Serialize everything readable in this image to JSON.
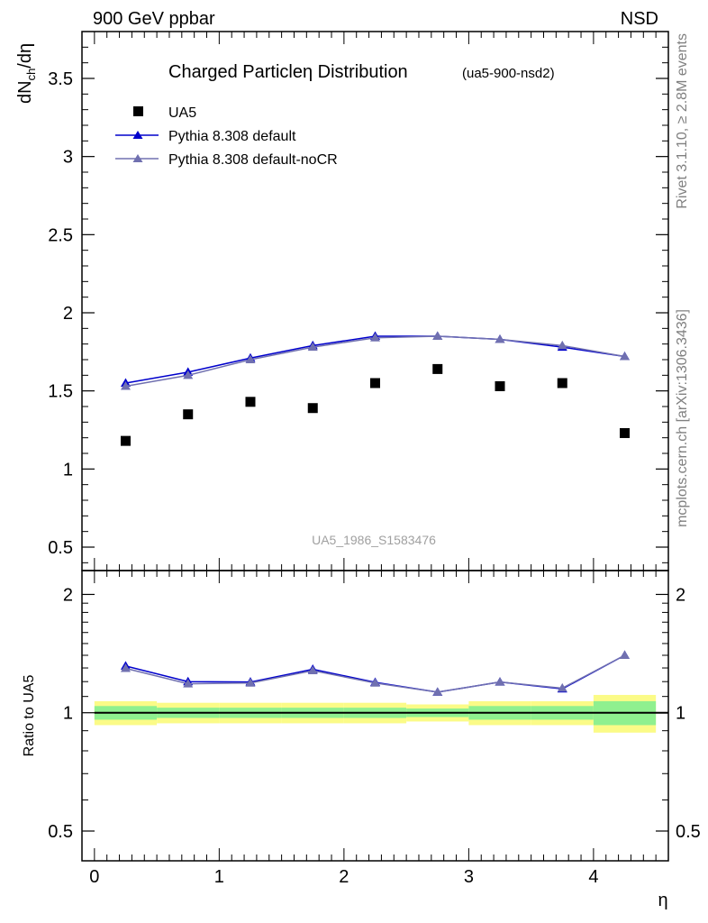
{
  "header": {
    "left": "900 GeV ppbar",
    "right": "NSD"
  },
  "side_labels": {
    "top": "Rivet 3.1.10, ≥ 2.8M events",
    "bottom": "mcplots.cern.ch [arXiv:1306.3436]"
  },
  "chart_data": [
    {
      "type": "scatter",
      "title": "Charged Particleη Distribution",
      "subtitle": "(ua5-900-nsd2)",
      "ylabel": "dNₕ/dη",
      "ylabel_main": "dN",
      "ylabel_sub": "ch",
      "ylabel_tail": "/dη",
      "watermark": "UA5_1986_S1583476",
      "ylim": [
        0.35,
        3.8
      ],
      "xlim": [
        -0.1,
        4.6
      ],
      "y_ticks": [
        0.5,
        1,
        1.5,
        2,
        2.5,
        3,
        3.5
      ],
      "y_tick_labels": [
        "0.5",
        "1",
        "1.5",
        "2",
        "2.5",
        "3",
        "3.5"
      ],
      "legend_position": "top-left",
      "x": [
        0.25,
        0.75,
        1.25,
        1.75,
        2.25,
        2.75,
        3.25,
        3.75,
        4.25
      ],
      "series": [
        {
          "name": "UA5",
          "color": "#000000",
          "marker": "square",
          "values": [
            1.18,
            1.35,
            1.43,
            1.39,
            1.55,
            1.64,
            1.53,
            1.55,
            1.23
          ]
        },
        {
          "name": "Pythia 8.308 default",
          "color": "#0000cc",
          "marker": "triangle",
          "values": [
            1.55,
            1.62,
            1.71,
            1.79,
            1.85,
            1.85,
            1.83,
            1.78,
            1.72
          ]
        },
        {
          "name": "Pythia 8.308 default-noCR",
          "color": "#7070b0",
          "marker": "triangle",
          "values": [
            1.53,
            1.6,
            1.7,
            1.78,
            1.84,
            1.85,
            1.83,
            1.79,
            1.72
          ]
        }
      ]
    },
    {
      "type": "line",
      "ylabel": "Ratio to UA5",
      "xlabel": "η",
      "ylim": [
        0.42,
        2.3
      ],
      "xlim": [
        -0.1,
        4.6
      ],
      "log_y": true,
      "y_ticks": [
        0.5,
        1,
        2
      ],
      "y_tick_labels": [
        "0.5",
        "1",
        "2"
      ],
      "x_ticks": [
        0,
        1,
        2,
        3,
        4
      ],
      "x_tick_labels": [
        "0",
        "1",
        "2",
        "3",
        "4"
      ],
      "bands": {
        "edges": [
          0,
          0.5,
          1,
          1.5,
          2,
          2.5,
          3,
          3.5,
          4,
          4.5
        ],
        "yellow": [
          0.07,
          0.06,
          0.06,
          0.06,
          0.06,
          0.05,
          0.07,
          0.07,
          0.11
        ],
        "green": [
          0.04,
          0.03,
          0.03,
          0.03,
          0.03,
          0.025,
          0.04,
          0.04,
          0.07
        ],
        "yellow_color": "#fbfb87",
        "green_color": "#8ff08f"
      },
      "x": [
        0.25,
        0.75,
        1.25,
        1.75,
        2.25,
        2.75,
        3.25,
        3.75,
        4.25
      ],
      "series": [
        {
          "name": "Pythia 8.308 default",
          "color": "#0000cc",
          "values": [
            1.315,
            1.2,
            1.197,
            1.29,
            1.195,
            1.128,
            1.197,
            1.15,
            1.4
          ]
        },
        {
          "name": "Pythia 8.308 default-noCR",
          "color": "#7070b0",
          "values": [
            1.297,
            1.185,
            1.19,
            1.28,
            1.19,
            1.128,
            1.197,
            1.155,
            1.4
          ]
        }
      ]
    }
  ]
}
